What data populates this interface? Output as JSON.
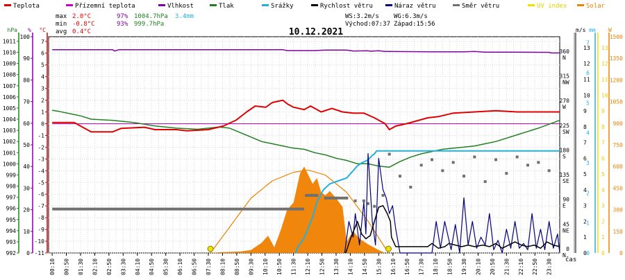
{
  "legend": [
    {
      "label": "Teplota",
      "color": "#e00000"
    },
    {
      "label": "Přízemní teplota",
      "color": "#cc00cc"
    },
    {
      "label": "Vlhkost",
      "color": "#8000a0"
    },
    {
      "label": "Tlak",
      "color": "#208020"
    },
    {
      "label": "Srážky",
      "color": "#20b0e0"
    },
    {
      "label": "Rychlost větru",
      "color": "#000000"
    },
    {
      "label": "Náraz větru",
      "color": "#000080"
    },
    {
      "label": "Směr větru",
      "color": "#707070"
    },
    {
      "label": "UV index",
      "color": "#f0e000"
    },
    {
      "label": "Solar",
      "color": "#f08000"
    }
  ],
  "stats": {
    "max": {
      "label": "max",
      "temp": "2.0°C",
      "hum": "97%",
      "press": "1004.7hPa",
      "rain": "3.4mm"
    },
    "min": {
      "label": "min",
      "temp": "-0.8°C",
      "hum": "93%",
      "press": "999.7hPa"
    },
    "avg": {
      "label": "avg",
      "temp": "0.4°C"
    },
    "wind_ws": "WS:3.2m/s",
    "wind_wg": "WG:6.3m/s",
    "sunrise": "Východ:07:37",
    "sunset": "Západ:15:56"
  },
  "colors": {
    "temp": "#e00000",
    "ground": "#cc00cc",
    "hum": "#8000a0",
    "press": "#208020",
    "rain": "#20b0e0",
    "wind": "#000000",
    "gust": "#000080",
    "dir": "#707070",
    "uv": "#f0e000",
    "solar": "#f08000"
  },
  "chart_data": {
    "type": "line",
    "title": "10.12.2021",
    "xlabel": "čas",
    "x_ticks": [
      "00:10",
      "00:50",
      "01:30",
      "02:10",
      "02:50",
      "03:30",
      "04:10",
      "04:50",
      "05:30",
      "06:10",
      "06:50",
      "07:30",
      "08:10",
      "08:50",
      "09:30",
      "10:10",
      "10:50",
      "11:30",
      "12:10",
      "12:50",
      "13:30",
      "14:10",
      "14:50",
      "15:30",
      "16:10",
      "16:50",
      "17:30",
      "18:10",
      "18:50",
      "19:30",
      "20:10",
      "20:50",
      "21:30",
      "22:10",
      "22:50",
      "23:30"
    ],
    "axes": {
      "press": {
        "unit": "hPa",
        "ticks": [
          992,
          993,
          994,
          995,
          996,
          997,
          998,
          999,
          1000,
          1001,
          1002,
          1003,
          1004,
          1005,
          1006,
          1007,
          1008,
          1009,
          1010,
          1011
        ],
        "range": [
          992,
          1011.4
        ]
      },
      "hum": {
        "unit": "%",
        "ticks": [
          0,
          10,
          20,
          30,
          40,
          50,
          60,
          70,
          80,
          90,
          100
        ],
        "range": [
          0,
          100
        ]
      },
      "temp": {
        "unit": "°C",
        "ticks": [
          -11,
          -10,
          -9,
          -8,
          -7,
          -6,
          -5,
          -4,
          -3,
          -2,
          -1,
          0,
          1,
          2,
          3,
          4,
          5,
          6,
          7
        ],
        "range": [
          -11,
          7.4
        ]
      },
      "dir": {
        "ticks": [
          {
            "v": 0,
            "l": "0",
            "d": "N"
          },
          {
            "v": 45,
            "l": "45",
            "d": "NE"
          },
          {
            "v": 90,
            "l": "90",
            "d": "E"
          },
          {
            "v": 135,
            "l": "135",
            "d": "SE"
          },
          {
            "v": 180,
            "l": "180",
            "d": "S"
          },
          {
            "v": 225,
            "l": "225",
            "d": "SW"
          },
          {
            "v": 270,
            "l": "270",
            "d": "W"
          },
          {
            "v": 315,
            "l": "315",
            "d": "NW"
          },
          {
            "v": 360,
            "l": "360",
            "d": "N"
          }
        ],
        "range": [
          0,
          394
        ]
      },
      "wind": {
        "unit": "m/s",
        "ticks": [
          0,
          1,
          2,
          3,
          4,
          5,
          6,
          7,
          8,
          9,
          10,
          11,
          12,
          13
        ],
        "range": [
          0,
          13.7
        ]
      },
      "rain": {
        "unit": "mm",
        "ticks": [
          0,
          1,
          2,
          3,
          4,
          5,
          6,
          7
        ],
        "range": [
          0,
          7.2
        ]
      },
      "uv": {
        "unit": "",
        "ticks": [
          0,
          1,
          2,
          3,
          4,
          5,
          6,
          7,
          8,
          9,
          10,
          11,
          12,
          13
        ],
        "range": [
          0,
          13.7
        ]
      },
      "solar": {
        "unit": "W",
        "ticks": [
          0,
          150,
          300,
          450,
          600,
          750,
          900,
          1050,
          1200,
          1350,
          1500
        ],
        "range": [
          0,
          1500
        ]
      }
    },
    "series": [
      {
        "name": "Teplota",
        "key": "temp",
        "axis": "temp",
        "x": [
          0.17,
          1.2,
          1.6,
          2.0,
          3.0,
          3.4,
          4.5,
          5.0,
          6.0,
          6.5,
          7.5,
          8.2,
          8.8,
          9.3,
          9.7,
          10.2,
          10.5,
          11.0,
          11.2,
          11.5,
          12.0,
          12.3,
          12.8,
          13.3,
          13.8,
          14.3,
          14.8,
          15.3,
          15.6,
          15.8,
          16.0,
          16.3,
          16.8,
          17.2,
          17.8,
          18.3,
          19.0,
          20.0,
          21.0,
          22.0,
          23.0,
          24.0
        ],
        "values": [
          0.1,
          0.1,
          -0.3,
          -0.7,
          -0.7,
          -0.4,
          -0.3,
          -0.5,
          -0.5,
          -0.6,
          -0.5,
          -0.2,
          0.3,
          1.0,
          1.5,
          1.4,
          1.8,
          2.0,
          1.7,
          1.4,
          1.2,
          1.5,
          1.0,
          1.3,
          1.0,
          0.9,
          0.9,
          0.5,
          0.2,
          0.0,
          -0.5,
          -0.2,
          0.0,
          0.2,
          0.5,
          0.6,
          0.9,
          1.0,
          1.1,
          1.0,
          1.0,
          1.0
        ]
      },
      {
        "name": "Přízemní teplota",
        "key": "ground",
        "axis": "temp",
        "x": [
          0.17,
          24.0
        ],
        "values": [
          0.0,
          0.0
        ]
      },
      {
        "name": "Vlhkost",
        "key": "hum",
        "axis": "hum",
        "x": [
          0.17,
          3.0,
          3.1,
          3.3,
          7.0,
          11.0,
          11.2,
          12.5,
          13.0,
          14.0,
          14.3,
          15.0,
          15.1,
          15.5,
          15.8,
          16.0,
          17.0,
          18.0,
          19.5,
          20.0,
          20.5,
          22.0,
          23.5,
          23.6,
          24.0
        ],
        "values": [
          94,
          94,
          93.4,
          94,
          94,
          94,
          93.6,
          93.6,
          93.8,
          93.8,
          93.4,
          93.5,
          93.3,
          93.5,
          93.2,
          93.2,
          93.1,
          93.0,
          93.0,
          93.2,
          92.9,
          92.9,
          92.8,
          92.5,
          92.5
        ]
      },
      {
        "name": "Tlak",
        "key": "press",
        "axis": "press",
        "x": [
          0.17,
          0.5,
          1.0,
          1.5,
          2.0,
          3.0,
          4.0,
          5.0,
          6.0,
          7.0,
          7.5,
          8.0,
          8.5,
          9.0,
          9.5,
          10.0,
          10.5,
          11.0,
          11.5,
          12.0,
          12.5,
          13.0,
          13.5,
          14.0,
          14.5,
          15.0,
          15.5,
          16.0,
          16.5,
          17.0,
          17.5,
          18.0,
          18.5,
          19.0,
          19.5,
          20.0,
          20.5,
          21.0,
          22.0,
          23.0,
          24.0
        ],
        "values": [
          1004.8,
          1004.7,
          1004.5,
          1004.3,
          1004.0,
          1003.9,
          1003.7,
          1003.4,
          1003.2,
          1003.1,
          1003.2,
          1003.3,
          1003.2,
          1002.8,
          1002.4,
          1002.0,
          1001.8,
          1001.6,
          1001.4,
          1001.3,
          1001.0,
          1000.8,
          1000.5,
          1000.3,
          1000.0,
          1000.0,
          999.8,
          999.7,
          1000.2,
          1000.6,
          1000.9,
          1001.1,
          1001.3,
          1001.4,
          1001.5,
          1001.6,
          1001.8,
          1002.0,
          1002.6,
          1003.2,
          1003.9
        ]
      },
      {
        "name": "Srážky",
        "key": "rain",
        "axis": "rain",
        "x": [
          11.6,
          11.7,
          12.0,
          12.4,
          12.6,
          12.9,
          13.2,
          13.6,
          14.0,
          14.5,
          14.7,
          15.0,
          15.2,
          15.3,
          15.4,
          17.0,
          24.0
        ],
        "values": [
          0.0,
          0.2,
          0.5,
          1.2,
          1.7,
          2.1,
          2.3,
          2.4,
          2.5,
          2.9,
          3.0,
          3.1,
          3.25,
          3.3,
          3.4,
          3.4,
          3.4
        ]
      },
      {
        "name": "Rychlost větru",
        "key": "wind",
        "axis": "wind",
        "x": [
          13.95,
          14.2,
          14.5,
          14.7,
          14.9,
          15.1,
          15.3,
          15.5,
          15.7,
          15.9,
          16.05,
          16.1,
          16.3,
          16.5,
          16.7,
          16.9,
          17.2,
          17.5,
          17.8,
          18.0,
          18.3,
          18.6,
          18.8,
          19.1,
          19.4,
          19.7,
          20.0,
          20.4,
          20.7,
          21.0,
          21.3,
          21.6,
          21.9,
          22.2,
          22.5,
          22.8,
          23.1,
          23.4,
          23.7,
          24.0
        ],
        "values": [
          0,
          1.0,
          2.0,
          1.2,
          0.9,
          1.1,
          2.0,
          2.9,
          3.0,
          2.5,
          2.0,
          1.0,
          0.4,
          0.4,
          0.4,
          0.4,
          0.4,
          0.4,
          0.4,
          0.6,
          0.3,
          0.4,
          0.6,
          0.5,
          0.4,
          0.5,
          0.4,
          0.5,
          0.4,
          0.6,
          0.3,
          0.5,
          0.7,
          0.5,
          0.4,
          0.5,
          0.3,
          0.7,
          0.5,
          0.4
        ]
      },
      {
        "name": "Náraz větru",
        "key": "gust",
        "axis": "wind",
        "x": [
          13.9,
          14.1,
          14.3,
          14.4,
          14.6,
          14.8,
          14.9,
          15.0,
          15.2,
          15.35,
          15.5,
          15.7,
          15.85,
          16.0,
          16.15,
          16.3,
          16.5,
          17.0,
          18.0,
          18.2,
          18.4,
          18.6,
          18.9,
          19.1,
          19.3,
          19.5,
          19.7,
          19.9,
          20.1,
          20.3,
          20.5,
          20.7,
          20.9,
          21.1,
          21.3,
          21.5,
          21.7,
          21.9,
          22.1,
          22.3,
          22.5,
          22.7,
          22.9,
          23.1,
          23.3,
          23.5,
          23.7,
          23.9,
          24.0
        ],
        "values": [
          0,
          2.0,
          1.0,
          2.5,
          0.5,
          3.2,
          1.2,
          6.3,
          2.0,
          0.5,
          6.0,
          4.0,
          3.5,
          2.5,
          3.0,
          1.5,
          0,
          0,
          0,
          2.0,
          0.3,
          2.0,
          0.2,
          1.8,
          0,
          3.5,
          0.5,
          2.0,
          0.3,
          1.0,
          0.5,
          2.5,
          0.2,
          0.8,
          0,
          1.5,
          0.3,
          2.0,
          0.3,
          0.6,
          0.2,
          2.5,
          0.3,
          1.5,
          0.2,
          2.0,
          0.3,
          1.2,
          0
        ]
      },
      {
        "name": "Směr větru",
        "key": "dir",
        "axis": "dir",
        "x": [
          0.17,
          12.0,
          12.1,
          12.6,
          13.0,
          13.5,
          14.0,
          14.4,
          14.8,
          15.0,
          15.3,
          15.7,
          16.0,
          16.5,
          17.0,
          17.5,
          18.0,
          18.5,
          19.0,
          19.5,
          20.0,
          20.5,
          21.0,
          21.5,
          22.0,
          22.5,
          23.0,
          23.5
        ],
        "values": [
          80,
          80,
          105,
          105,
          100,
          100,
          100,
          95,
          95,
          90,
          85,
          105,
          180,
          140,
          120,
          160,
          170,
          150,
          165,
          140,
          175,
          130,
          170,
          145,
          175,
          160,
          165,
          150
        ]
      },
      {
        "name": "Solar",
        "key": "solar",
        "axis": "solar",
        "x": [
          7.6,
          8.0,
          9.0,
          9.5,
          10.0,
          10.3,
          10.6,
          10.9,
          11.2,
          11.5,
          11.8,
          12.0,
          12.2,
          12.4,
          12.6,
          12.8,
          13.0,
          13.2,
          13.5,
          13.8,
          14.0,
          14.3,
          14.6,
          15.0,
          15.5,
          15.8
        ],
        "values": [
          0,
          5,
          10,
          20,
          70,
          120,
          40,
          160,
          300,
          350,
          550,
          600,
          540,
          480,
          520,
          420,
          400,
          430,
          380,
          320,
          80,
          150,
          100,
          60,
          20,
          0
        ]
      },
      {
        "name": "Solar max",
        "key": "solar_max",
        "axis": "solar",
        "x": [
          7.6,
          8.5,
          9.5,
          10.5,
          11.5,
          12.2,
          13.0,
          14.0,
          15.0,
          15.96
        ],
        "values": [
          0,
          180,
          380,
          500,
          560,
          575,
          540,
          420,
          220,
          0
        ]
      },
      {
        "name": "UV index",
        "key": "uv",
        "axis": "uv",
        "x": [
          7.6,
          15.96
        ],
        "values": [
          0,
          0
        ]
      }
    ]
  }
}
